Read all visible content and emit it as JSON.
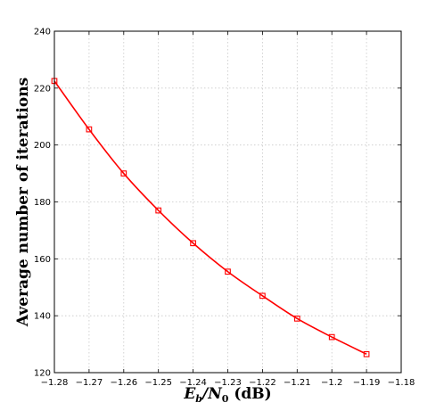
{
  "chart_data": {
    "type": "line",
    "xlabel_parts": [
      "E",
      "b",
      "/N",
      "0",
      " (dB)"
    ],
    "ylabel": "Average number of iterations",
    "xlim": [
      -1.28,
      -1.18
    ],
    "ylim": [
      120,
      240
    ],
    "xticks": [
      -1.28,
      -1.27,
      -1.26,
      -1.25,
      -1.24,
      -1.23,
      -1.22,
      -1.21,
      -1.2,
      -1.19,
      -1.18
    ],
    "xtick_labels": [
      "−1.28",
      "−1.27",
      "−1.26",
      "−1.25",
      "−1.24",
      "−1.23",
      "−1.22",
      "−1.21",
      "−1.2",
      "−1.19",
      "−1.18"
    ],
    "yticks": [
      120,
      140,
      160,
      180,
      200,
      220,
      240
    ],
    "ytick_labels": [
      "120",
      "140",
      "160",
      "180",
      "200",
      "220",
      "240"
    ],
    "grid": true,
    "series": [
      {
        "color": "#ff0000",
        "marker": "square",
        "x": [
          -1.28,
          -1.27,
          -1.26,
          -1.25,
          -1.24,
          -1.23,
          -1.22,
          -1.21,
          -1.2,
          -1.19
        ],
        "y": [
          222.5,
          205.5,
          190.0,
          177.0,
          165.5,
          155.5,
          147.0,
          139.0,
          132.5,
          126.5
        ]
      }
    ]
  }
}
